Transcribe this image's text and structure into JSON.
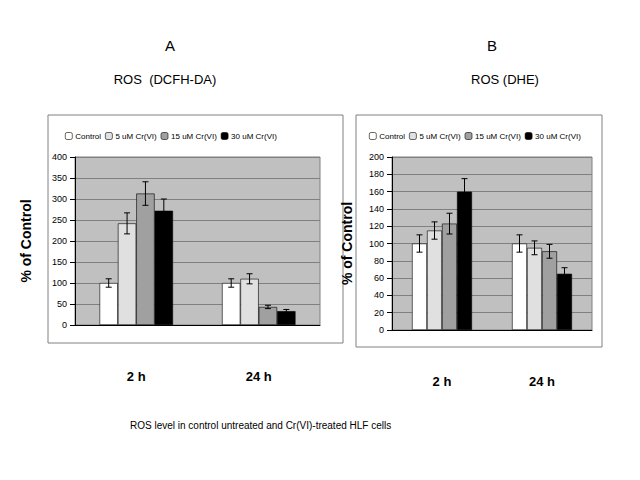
{
  "chart_data": [
    {
      "type": "bar",
      "label": "A",
      "title": "ROS  (DCFH-DA)",
      "y_label": "% of Control",
      "categories": [
        "2 h",
        "24 h"
      ],
      "series": [
        {
          "name": "Control",
          "color": "#ffffff",
          "values": [
            100,
            100
          ],
          "errors": [
            10,
            10
          ]
        },
        {
          "name": "5 uM Cr(VI)",
          "color": "#e0e0e0",
          "values": [
            242,
            110
          ],
          "errors": [
            25,
            12
          ]
        },
        {
          "name": "15 uM Cr(VI)",
          "color": "#a0a0a0",
          "values": [
            313,
            43
          ],
          "errors": [
            28,
            4
          ]
        },
        {
          "name": "30 uM Cr(VI)",
          "color": "#000000",
          "values": [
            272,
            33
          ],
          "errors": [
            28,
            4
          ]
        }
      ],
      "ylim": [
        0,
        400
      ],
      "yticks": [
        0,
        50,
        100,
        150,
        200,
        250,
        300,
        350,
        400
      ],
      "grid": true,
      "legend": "top"
    },
    {
      "type": "bar",
      "label": "B",
      "title": "ROS (DHE)",
      "y_label": "% of Control",
      "categories": [
        "2 h",
        "24 h"
      ],
      "series": [
        {
          "name": "Control",
          "color": "#ffffff",
          "values": [
            100,
            100
          ],
          "errors": [
            10,
            10
          ]
        },
        {
          "name": "5 uM Cr(VI)",
          "color": "#e0e0e0",
          "values": [
            115,
            95
          ],
          "errors": [
            10,
            8
          ]
        },
        {
          "name": "15 uM Cr(VI)",
          "color": "#a0a0a0",
          "values": [
            123,
            91
          ],
          "errors": [
            12,
            8
          ]
        },
        {
          "name": "30 uM Cr(VI)",
          "color": "#000000",
          "values": [
            160,
            65
          ],
          "errors": [
            15,
            7
          ]
        }
      ],
      "ylim": [
        0,
        200
      ],
      "yticks": [
        0,
        20,
        40,
        60,
        80,
        100,
        120,
        140,
        160,
        180,
        200
      ],
      "grid": true,
      "legend": "top"
    }
  ],
  "caption": "ROS level in control untreated and Cr(VI)-treated HLF cells"
}
